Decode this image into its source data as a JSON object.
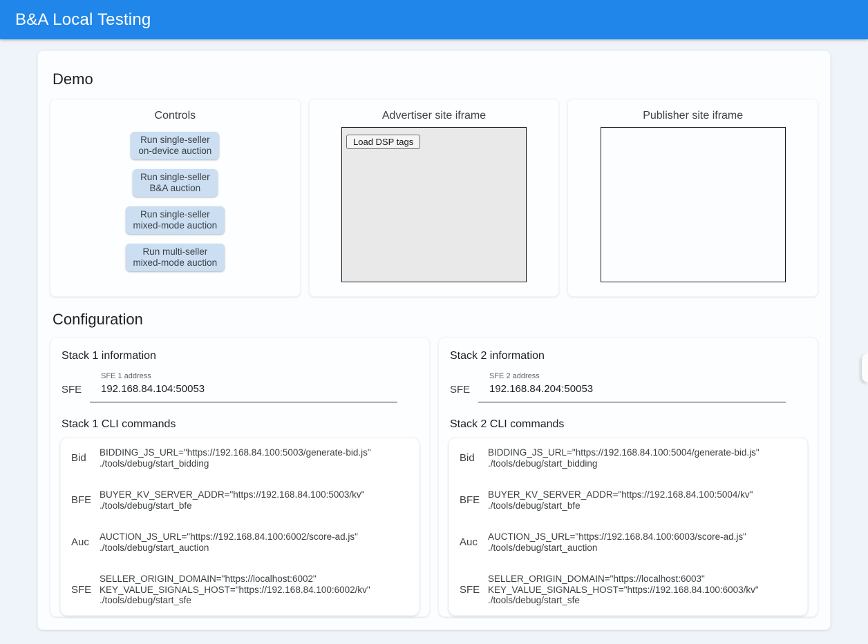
{
  "header": {
    "title": "B&A Local Testing"
  },
  "demo": {
    "heading": "Demo",
    "controls": {
      "title": "Controls",
      "buttons": [
        {
          "lines": [
            "Run single-seller",
            "on-device auction"
          ]
        },
        {
          "lines": [
            "Run single-seller",
            "B&A auction"
          ]
        },
        {
          "lines": [
            "Run single-seller",
            "mixed-mode auction"
          ]
        },
        {
          "lines": [
            "Run multi-seller",
            "mixed-mode auction"
          ]
        }
      ]
    },
    "advertiser": {
      "title": "Advertiser site iframe",
      "load_button": "Load DSP tags"
    },
    "publisher": {
      "title": "Publisher site iframe"
    }
  },
  "configuration": {
    "heading": "Configuration",
    "stacks": [
      {
        "info_title": "Stack 1 information",
        "sfe_label": "SFE",
        "address_label": "SFE 1 address",
        "address_value": "192.168.84.104:50053",
        "cli_title": "Stack 1 CLI commands",
        "commands": [
          {
            "label": "Bid",
            "lines": [
              "BIDDING_JS_URL=\"https://192.168.84.100:5003/generate-bid.js\"",
              "./tools/debug/start_bidding"
            ]
          },
          {
            "label": "BFE",
            "lines": [
              "BUYER_KV_SERVER_ADDR=\"https://192.168.84.100:5003/kv\"",
              "./tools/debug/start_bfe"
            ]
          },
          {
            "label": "Auc",
            "lines": [
              "AUCTION_JS_URL=\"https://192.168.84.100:6002/score-ad.js\"",
              "./tools/debug/start_auction"
            ]
          },
          {
            "label": "SFE",
            "lines": [
              "SELLER_ORIGIN_DOMAIN=\"https://localhost:6002\"",
              "KEY_VALUE_SIGNALS_HOST=\"https://192.168.84.100:6002/kv\"",
              "./tools/debug/start_sfe"
            ]
          }
        ]
      },
      {
        "info_title": "Stack 2 information",
        "sfe_label": "SFE",
        "address_label": "SFE 2 address",
        "address_value": "192.168.84.204:50053",
        "cli_title": "Stack 2 CLI commands",
        "commands": [
          {
            "label": "Bid",
            "lines": [
              "BIDDING_JS_URL=\"https://192.168.84.100:5004/generate-bid.js\"",
              "./tools/debug/start_bidding"
            ]
          },
          {
            "label": "BFE",
            "lines": [
              "BUYER_KV_SERVER_ADDR=\"https://192.168.84.100:5004/kv\"",
              "./tools/debug/start_bfe"
            ]
          },
          {
            "label": "Auc",
            "lines": [
              "AUCTION_JS_URL=\"https://192.168.84.100:6003/score-ad.js\"",
              "./tools/debug/start_auction"
            ]
          },
          {
            "label": "SFE",
            "lines": [
              "SELLER_ORIGIN_DOMAIN=\"https://localhost:6003\"",
              "KEY_VALUE_SIGNALS_HOST=\"https://192.168.84.100:6003/kv\"",
              "./tools/debug/start_sfe"
            ]
          }
        ]
      }
    ]
  },
  "colors": {
    "header_blue": "#2086ea",
    "button_blue": "#cbdef2",
    "advertiser_iframe_gray": "#e9e9e9",
    "page_background": "#eef4f9"
  }
}
